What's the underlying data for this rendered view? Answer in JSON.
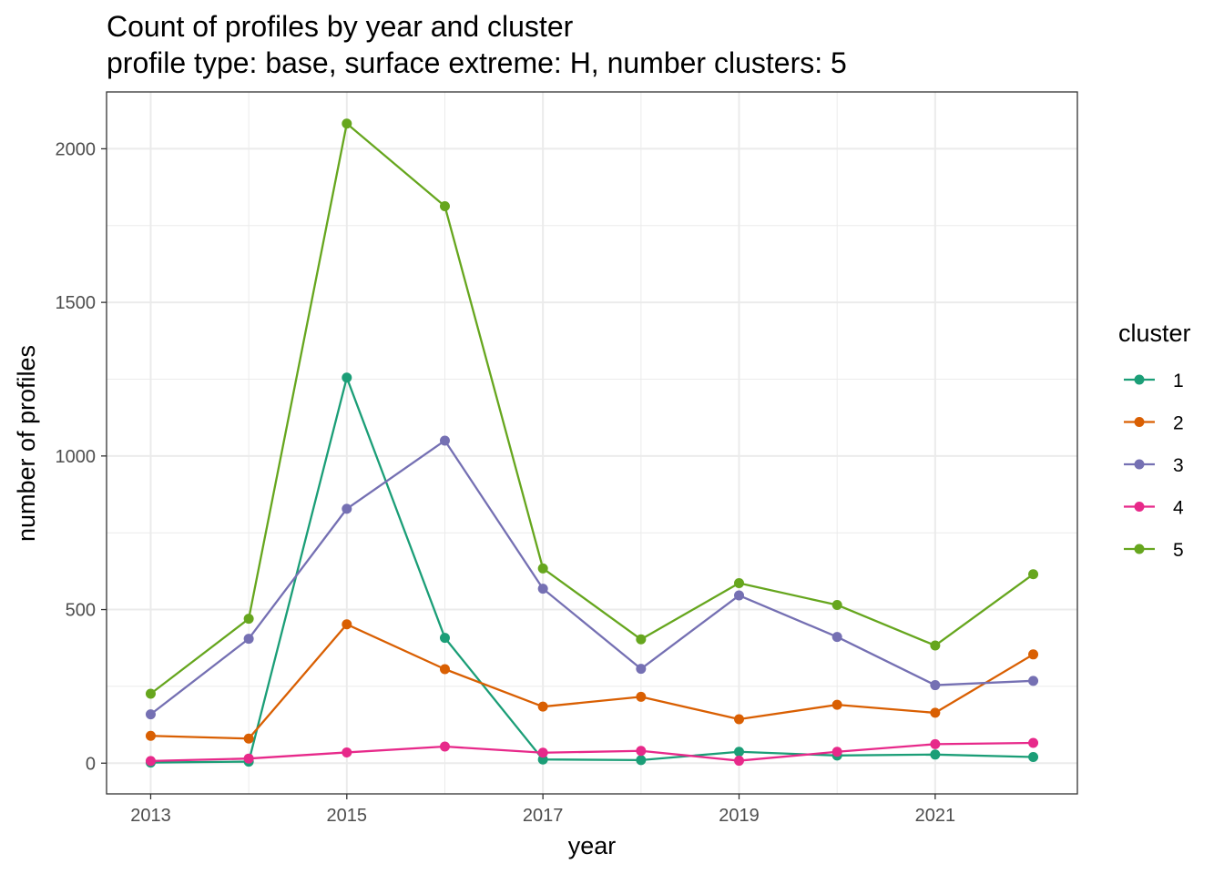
{
  "chart_data": {
    "type": "line",
    "title": "Count of profiles by year and cluster",
    "subtitle": "profile type: base, surface extreme: H, number clusters: 5",
    "xlabel": "year",
    "ylabel": "number of profiles",
    "x": [
      2013,
      2014,
      2015,
      2016,
      2017,
      2018,
      2019,
      2020,
      2021,
      2022
    ],
    "x_ticks": [
      2013,
      2015,
      2017,
      2019,
      2021
    ],
    "y_ticks": [
      0,
      500,
      1000,
      1500,
      2000
    ],
    "xlim": [
      2012.55,
      2022.45
    ],
    "ylim": [
      -100,
      2185
    ],
    "grid": true,
    "legend_title": "cluster",
    "legend_position": "right",
    "series": [
      {
        "name": "1",
        "color": "#1b9e77",
        "values": [
          2,
          5,
          1255,
          408,
          12,
          10,
          37,
          25,
          28,
          20
        ]
      },
      {
        "name": "2",
        "color": "#d95f02",
        "values": [
          89,
          80,
          452,
          306,
          184,
          216,
          143,
          190,
          164,
          354
        ]
      },
      {
        "name": "3",
        "color": "#7570b3",
        "values": [
          159,
          405,
          828,
          1050,
          568,
          307,
          546,
          411,
          254,
          268
        ]
      },
      {
        "name": "4",
        "color": "#e7298a",
        "values": [
          7,
          15,
          35,
          54,
          34,
          40,
          8,
          37,
          62,
          66
        ]
      },
      {
        "name": "5",
        "color": "#66a61e",
        "values": [
          226,
          470,
          2082,
          1813,
          634,
          403,
          586,
          515,
          383,
          615
        ]
      }
    ]
  }
}
